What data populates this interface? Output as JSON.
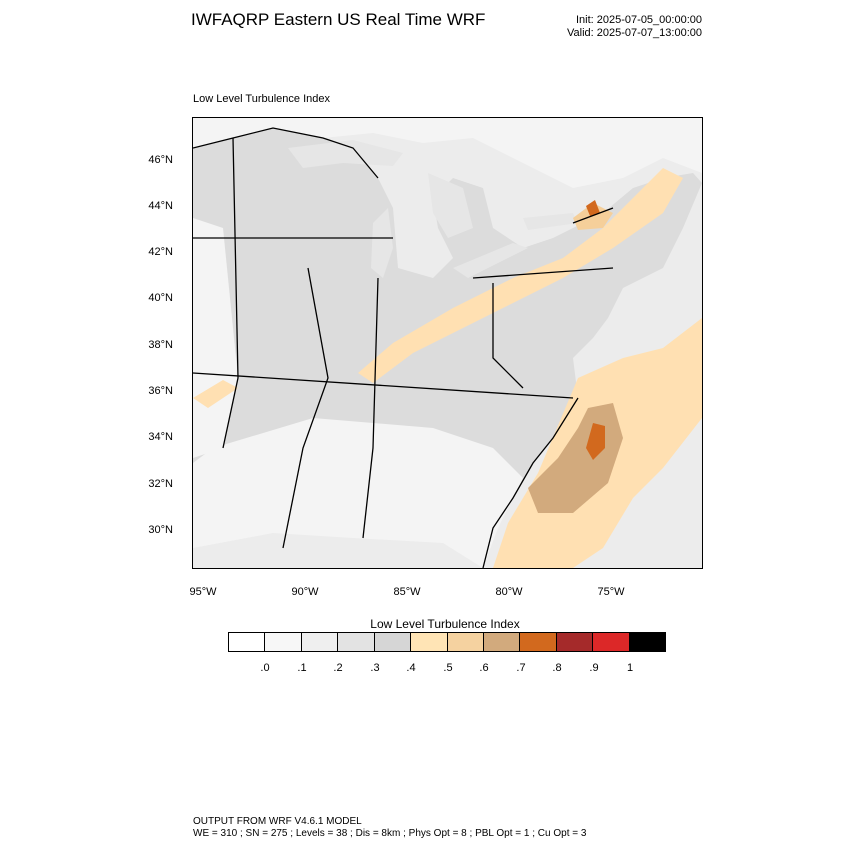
{
  "header": {
    "title": "IWFAQRP Eastern US Real Time WRF",
    "init": "Init: 2025-07-05_00:00:00",
    "valid": "Valid: 2025-07-07_13:00:00"
  },
  "map": {
    "plot_title": "Low Level Turbulence Index",
    "lat_labels": [
      "46°N",
      "44°N",
      "42°N",
      "40°N",
      "38°N",
      "36°N",
      "34°N",
      "32°N",
      "30°N"
    ],
    "lon_labels": [
      "95°W",
      "90°W",
      "85°W",
      "80°W",
      "75°W"
    ],
    "colors": {
      "land_light": "#f4f4f4",
      "land_gray": "#dcdcdc",
      "water": "#ececec",
      "lake": "#e6e6e6",
      "band_light": "#ffe0b2",
      "band_mid": "#f5cf9a",
      "band_tan": "#d2aa7d",
      "band_orange": "#d2691e"
    }
  },
  "colorbar": {
    "title": "Low Level Turbulence Index",
    "colors": [
      "#ffffff",
      "#f7f7f7",
      "#efefef",
      "#e3e3e3",
      "#d6d6d6",
      "#ffe4b5",
      "#f5d2a0",
      "#d2aa7d",
      "#d2691e",
      "#a52a2a",
      "#dc2828",
      "#000000"
    ],
    "ticks": [
      ".0",
      ".1",
      ".2",
      ".3",
      ".4",
      ".5",
      ".6",
      ".7",
      ".8",
      ".9",
      "1"
    ]
  },
  "footer": {
    "line1": "OUTPUT FROM WRF V4.6.1 MODEL",
    "line2": "WE = 310 ; SN = 275 ; Levels = 38 ; Dis = 8km ; Phys Opt = 8 ; PBL Opt = 1 ; Cu Opt = 3"
  }
}
